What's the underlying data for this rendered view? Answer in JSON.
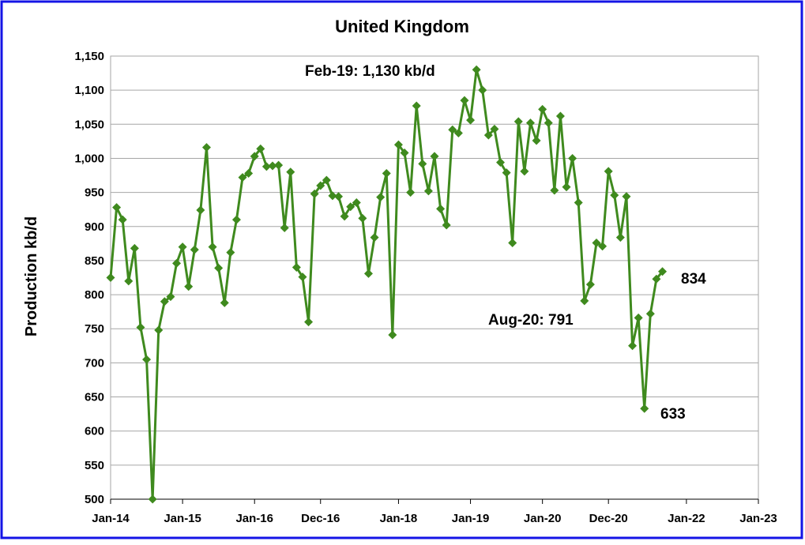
{
  "chart_data": {
    "type": "line",
    "title": "United Kingdom",
    "y_label": "Production kb/d",
    "x": [
      "2014-01",
      "2014-02",
      "2014-03",
      "2014-04",
      "2014-05",
      "2014-06",
      "2014-07",
      "2014-08",
      "2014-09",
      "2014-10",
      "2014-11",
      "2014-12",
      "2015-01",
      "2015-02",
      "2015-03",
      "2015-04",
      "2015-05",
      "2015-06",
      "2015-07",
      "2015-08",
      "2015-09",
      "2015-10",
      "2015-11",
      "2015-12",
      "2016-01",
      "2016-02",
      "2016-03",
      "2016-04",
      "2016-05",
      "2016-06",
      "2016-07",
      "2016-08",
      "2016-09",
      "2016-10",
      "2016-11",
      "2016-12",
      "2017-01",
      "2017-02",
      "2017-03",
      "2017-04",
      "2017-05",
      "2017-06",
      "2017-07",
      "2017-08",
      "2017-09",
      "2017-10",
      "2017-11",
      "2017-12",
      "2018-01",
      "2018-02",
      "2018-03",
      "2018-04",
      "2018-05",
      "2018-06",
      "2018-07",
      "2018-08",
      "2018-09",
      "2018-10",
      "2018-11",
      "2018-12",
      "2019-01",
      "2019-02",
      "2019-03",
      "2019-04",
      "2019-05",
      "2019-06",
      "2019-07",
      "2019-08",
      "2019-09",
      "2019-10",
      "2019-11",
      "2019-12",
      "2020-01",
      "2020-02",
      "2020-03",
      "2020-04",
      "2020-05",
      "2020-06",
      "2020-07",
      "2020-08",
      "2020-09",
      "2020-10",
      "2020-11",
      "2020-12",
      "2021-01",
      "2021-02",
      "2021-03",
      "2021-04",
      "2021-05",
      "2021-06",
      "2021-07",
      "2021-08",
      "2021-09"
    ],
    "series": [
      {
        "name": "Production",
        "color": "#3f8a1e",
        "values": [
          825,
          928,
          910,
          820,
          868,
          752,
          705,
          500,
          748,
          790,
          797,
          846,
          870,
          812,
          866,
          924,
          1016,
          870,
          839,
          788,
          862,
          910,
          972,
          978,
          1003,
          1014,
          988,
          989,
          990,
          898,
          980,
          840,
          826,
          760,
          948,
          960,
          968,
          945,
          944,
          915,
          929,
          935,
          912,
          831,
          884,
          943,
          978,
          741,
          1020,
          1008,
          950,
          1077,
          992,
          952,
          1003,
          926,
          902,
          1042,
          1037,
          1085,
          1056,
          1130,
          1100,
          1034,
          1043,
          994,
          979,
          876,
          1054,
          981,
          1052,
          1026,
          1072,
          1052,
          953,
          1062,
          958,
          1000,
          935,
          791,
          815,
          876,
          871,
          981,
          946,
          884,
          944,
          725,
          766,
          633,
          772,
          823,
          834
        ]
      }
    ],
    "xlim": [
      "2014-01",
      "2023-01"
    ],
    "xticks": [
      {
        "value": "2014-01",
        "label": "Jan-14"
      },
      {
        "value": "2015-01",
        "label": "Jan-15"
      },
      {
        "value": "2016-01",
        "label": "Jan-16"
      },
      {
        "value": "2016-12",
        "label": "Dec-16"
      },
      {
        "value": "2018-01",
        "label": "Jan-18"
      },
      {
        "value": "2019-01",
        "label": "Jan-19"
      },
      {
        "value": "2020-01",
        "label": "Jan-20"
      },
      {
        "value": "2020-12",
        "label": "Dec-20"
      },
      {
        "value": "2022-01",
        "label": "Jan-22"
      },
      {
        "value": "2023-01",
        "label": "Jan-23"
      }
    ],
    "ylim": [
      500,
      1150
    ],
    "yticks": [
      500,
      550,
      600,
      650,
      700,
      750,
      800,
      850,
      900,
      950,
      {
        "value": 1000,
        "label": "1,000"
      },
      {
        "value": 1050,
        "label": "1,050"
      },
      {
        "value": 1100,
        "label": "1,100"
      },
      {
        "value": 1150,
        "label": "1,150"
      }
    ],
    "grid": true,
    "annotations": [
      "Feb-19: 1,130 kb/d",
      "Aug-20: 791",
      "633",
      "834"
    ]
  }
}
